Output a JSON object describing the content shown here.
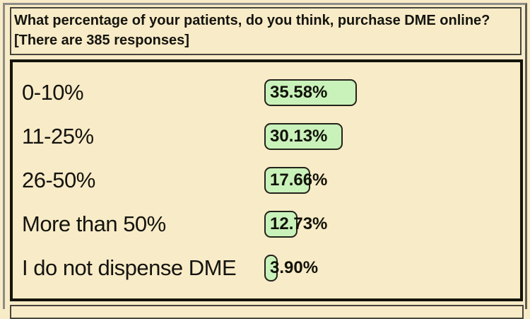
{
  "question": {
    "title": "What percentage of your patients, do you think, purchase DME online?",
    "responses_note": "[There are 385 responses]",
    "responses_count": 385
  },
  "chart_data": {
    "type": "bar",
    "orientation": "horizontal",
    "title": "What percentage of your patients, do you think, purchase DME online?",
    "subtitle": "[There are 385 responses]",
    "total_responses": 385,
    "categories": [
      "0-10%",
      "11-25%",
      "26-50%",
      "More than 50%",
      "I do not dispense DME"
    ],
    "values": [
      35.58,
      30.13,
      17.66,
      12.73,
      3.9
    ],
    "value_labels": [
      "35.58%",
      "30.13%",
      "17.66%",
      "12.73%",
      "3.90%"
    ],
    "unit": "percent",
    "xlim": [
      0,
      100
    ],
    "grid": false,
    "legend": false,
    "bar_color": "#C9F2BA",
    "bar_border_color": "#23231B",
    "background_color": "#F8EBC7"
  }
}
